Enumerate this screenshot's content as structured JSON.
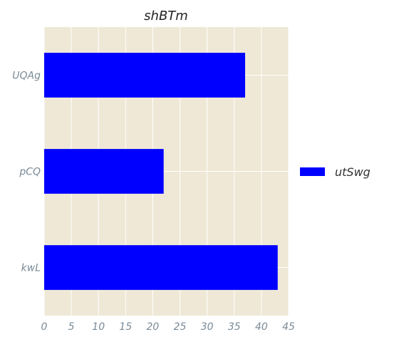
{
  "chart_data": {
    "type": "bar",
    "orientation": "horizontal",
    "title": "shBTm",
    "xlabel": "",
    "ylabel": "",
    "categories": [
      "UQAg",
      "pCQ",
      "kwL"
    ],
    "series": [
      {
        "name": "utSwg",
        "values": [
          37,
          22,
          43
        ]
      }
    ],
    "xlim": [
      0,
      45
    ],
    "xticks": [
      0,
      5,
      10,
      15,
      20,
      25,
      30,
      35,
      40,
      45
    ],
    "grid": true,
    "legend_position": "right",
    "colors": {
      "bar": "#0000ff",
      "plot_background": "#efe8d6",
      "grid": "#ffffff"
    }
  }
}
